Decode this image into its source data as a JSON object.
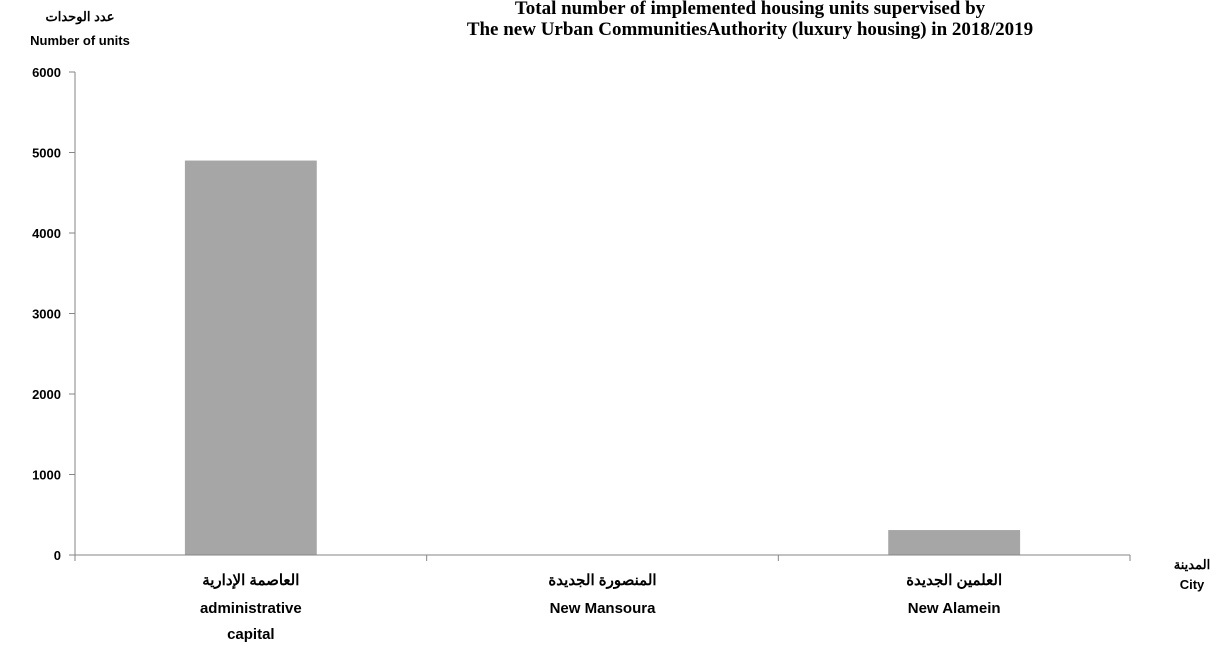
{
  "chart_data": {
    "type": "bar",
    "title_lines": [
      "Total number of implemented housing units supervised by",
      "The new Urban CommunitiesAuthority (luxury housing) in 2018/2019"
    ],
    "ylabel_ar": "عدد الوحدات",
    "ylabel_en": "Number of units",
    "xlabel_ar": "المدينة",
    "xlabel_en": "City",
    "categories": [
      {
        "ar": "العاصمة الإدارية",
        "en": [
          "administrative",
          "capital"
        ]
      },
      {
        "ar": "المنصورة الجديدة",
        "en": [
          "New Mansoura"
        ]
      },
      {
        "ar": "العلمين الجديدة",
        "en": [
          "New Alamein"
        ]
      }
    ],
    "values": [
      4900,
      0,
      310
    ],
    "ylim": [
      0,
      6000
    ],
    "yticks": [
      "0",
      "1000",
      "2000",
      "3000",
      "4000",
      "5000",
      "6000"
    ],
    "bar_color": "#a6a6a6",
    "axis_color": "#868686",
    "grid": false
  }
}
